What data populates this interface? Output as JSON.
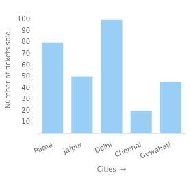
{
  "chart_data": {
    "type": "bar",
    "categories": [
      "Patna",
      "Jaipur",
      "Delhi",
      "Chennai",
      "Guwahati"
    ],
    "values": [
      80,
      50,
      100,
      20,
      45
    ],
    "xlabel": "Cities  →",
    "ylabel": "Number of tickets sold",
    "ylim": [
      0,
      112
    ],
    "yticks": [
      10,
      20,
      30,
      40,
      50,
      60,
      70,
      80,
      90,
      100
    ],
    "grid": false
  }
}
